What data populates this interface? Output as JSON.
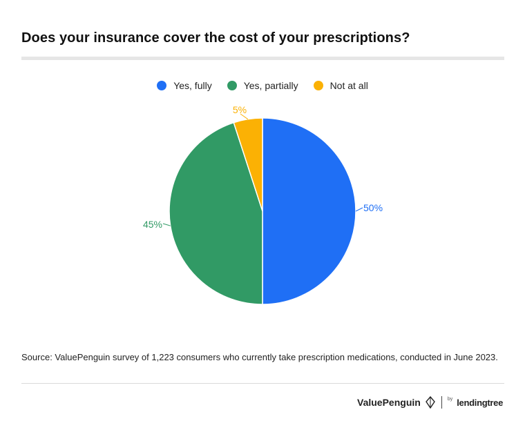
{
  "title": "Does your insurance cover the cost of your prescriptions?",
  "legend": [
    {
      "label": "Yes, fully",
      "color": "#1f6ff5"
    },
    {
      "label": "Yes, partially",
      "color": "#319a65"
    },
    {
      "label": "Not at all",
      "color": "#fbb104"
    }
  ],
  "chart_data": {
    "type": "pie",
    "title": "Does your insurance cover the cost of your prescriptions?",
    "legend_position": "top",
    "slices": [
      {
        "label": "Yes, fully",
        "value": 50,
        "display": "50%",
        "color": "#1f6ff5"
      },
      {
        "label": "Yes, partially",
        "value": 45,
        "display": "45%",
        "color": "#319a65"
      },
      {
        "label": "Not at all",
        "value": 5,
        "display": "5%",
        "color": "#fbb104"
      }
    ]
  },
  "source": "Source: ValuePenguin survey of 1,223 consumers who currently take prescription medications, conducted in June 2023.",
  "branding": {
    "valuepenguin": "ValuePenguin",
    "by": "by",
    "lendingtree": "lendingtree"
  }
}
